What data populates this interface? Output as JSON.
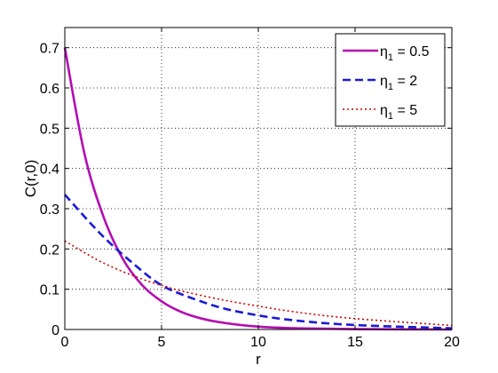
{
  "chart_data": {
    "type": "line",
    "xlabel": "r",
    "ylabel": "C(r,0)",
    "xlim": [
      0,
      20
    ],
    "ylim": [
      0,
      0.75
    ],
    "x_ticks": [
      "0",
      "5",
      "10",
      "15",
      "20"
    ],
    "y_ticks": [
      "0",
      "0.1",
      "0.2",
      "0.3",
      "0.4",
      "0.5",
      "0.6",
      "0.7"
    ],
    "grid": true,
    "grid_style": "dotted",
    "legend_position": "top-right",
    "series": [
      {
        "name": "η1 = 0.5",
        "legend_base": "η",
        "legend_sub": "1",
        "legend_rest": " = 0.5",
        "color": "#b40cb4",
        "line_style": "solid",
        "x": [
          0,
          1,
          2,
          3,
          4,
          5,
          6,
          7,
          8,
          10,
          12,
          15,
          20
        ],
        "y": [
          0.7,
          0.44,
          0.28,
          0.175,
          0.11,
          0.07,
          0.044,
          0.028,
          0.018,
          0.007,
          0.003,
          0.001,
          0.0
        ]
      },
      {
        "name": "η1 = 2",
        "legend_base": "η",
        "legend_sub": "1",
        "legend_rest": " = 2",
        "color": "#1a1ad6",
        "line_style": "dashed",
        "x": [
          0,
          2,
          4,
          5,
          6,
          8,
          10,
          12,
          15,
          20
        ],
        "y": [
          0.335,
          0.23,
          0.145,
          0.11,
          0.088,
          0.055,
          0.035,
          0.022,
          0.011,
          0.003
        ]
      },
      {
        "name": "η1 = 5",
        "legend_base": "η",
        "legend_sub": "1",
        "legend_rest": " = 5",
        "color": "#d00000",
        "line_style": "dotted",
        "x": [
          0,
          2,
          4,
          5,
          6,
          8,
          10,
          12,
          15,
          20
        ],
        "y": [
          0.22,
          0.165,
          0.125,
          0.11,
          0.096,
          0.075,
          0.058,
          0.043,
          0.027,
          0.01
        ]
      }
    ]
  }
}
